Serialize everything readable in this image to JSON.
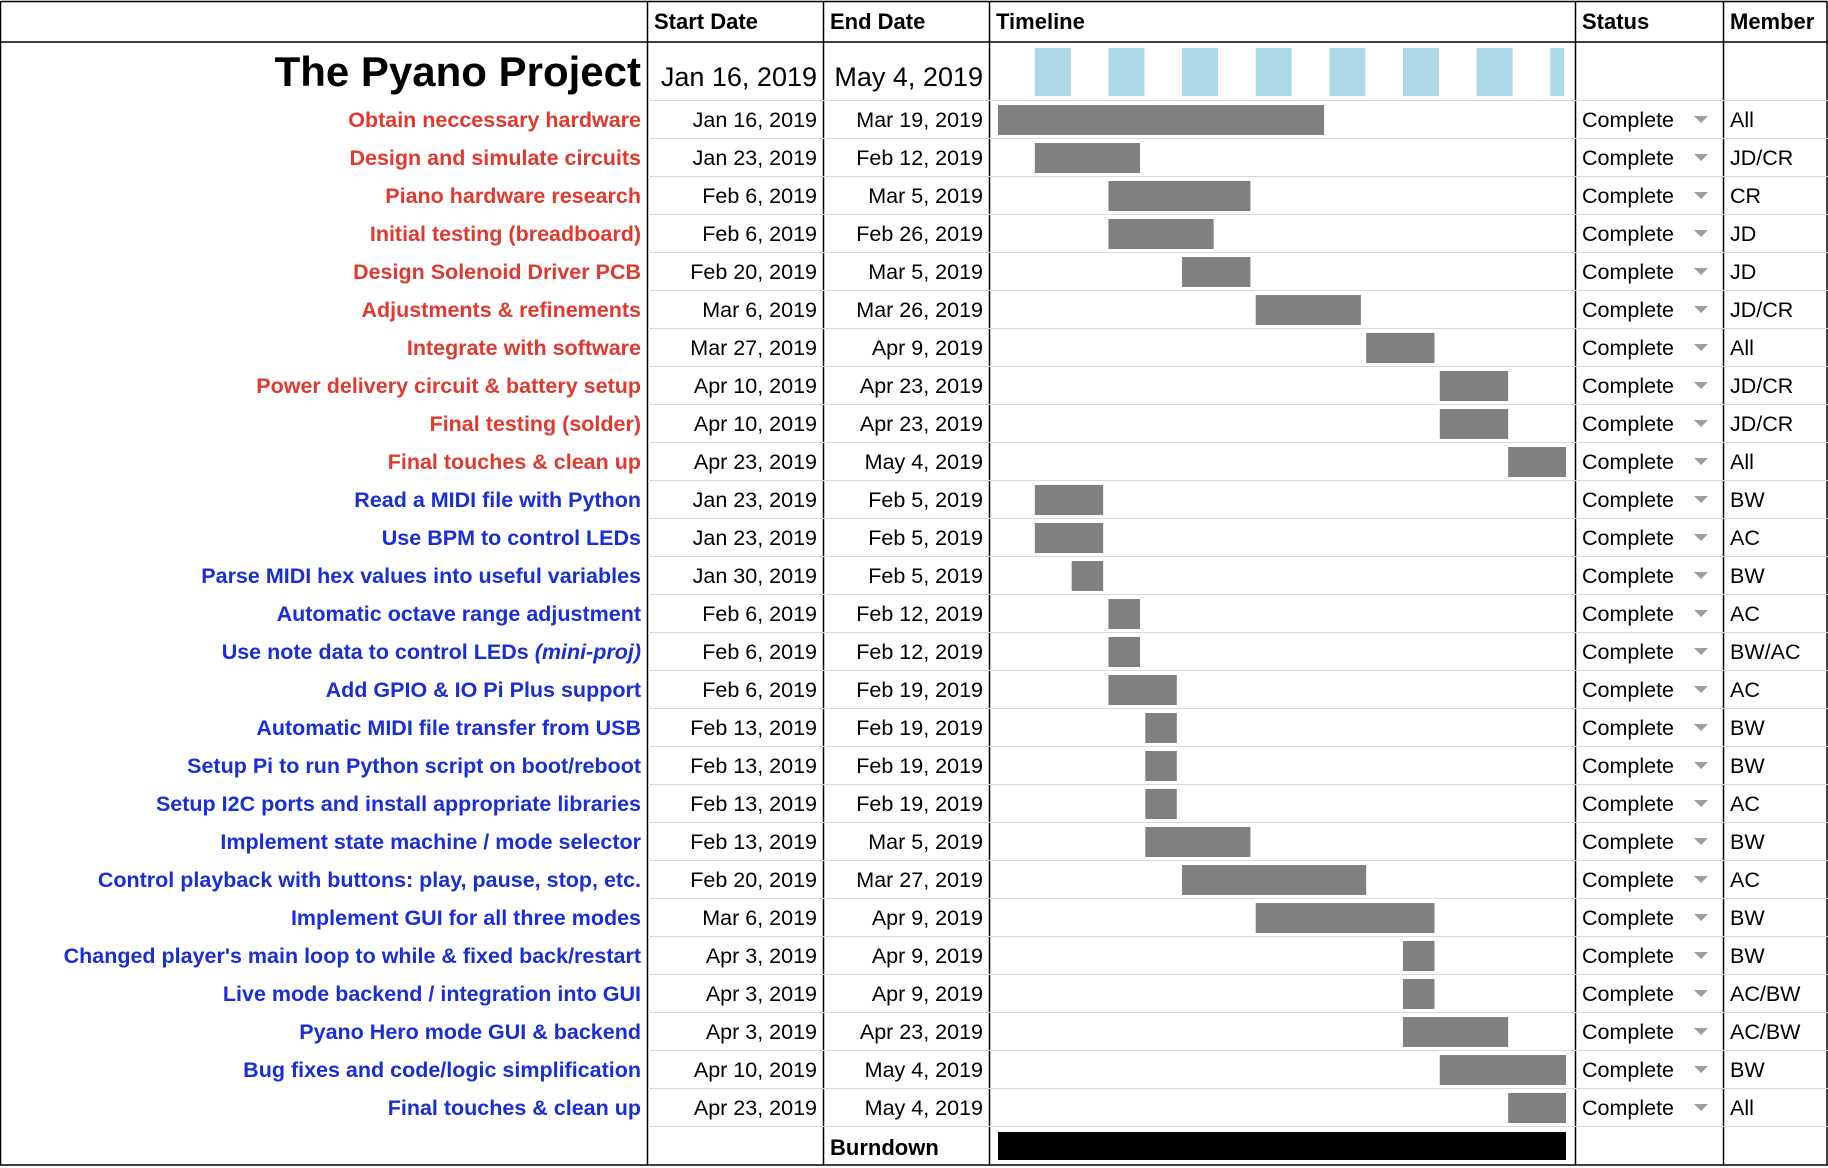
{
  "colors": {
    "hardware_task": "#e0392f",
    "software_task": "#1a2ed8",
    "bar": "#808080",
    "timeline_marker": "#add8e6",
    "burndown": "#000000",
    "grid": "#d9d9d9",
    "grid_dark": "#000000"
  },
  "header": {
    "task": "",
    "start": "Start Date",
    "end": "End Date",
    "timeline": "Timeline",
    "status": "Status",
    "member": "Member"
  },
  "project": {
    "title": "The Pyano Project",
    "start": "Jan 16, 2019",
    "end": "May 4, 2019"
  },
  "burndown_label": "Burndown",
  "chart_data": {
    "type": "gantt",
    "x_range": [
      "2019-01-16",
      "2019-05-04"
    ],
    "timeline_week_markers": [
      "2019-01-23",
      "2019-02-06",
      "2019-02-20",
      "2019-03-06",
      "2019-03-20",
      "2019-04-03",
      "2019-04-17",
      "2019-05-01"
    ],
    "burndown": {
      "start": "2019-01-16",
      "end": "2019-05-04"
    },
    "tasks": [
      {
        "name": "Obtain neccessary hardware",
        "group": "hardware",
        "start_label": "Jan 16, 2019",
        "end_label": "Mar 19, 2019",
        "start": "2019-01-16",
        "end": "2019-03-19",
        "status": "Complete",
        "member": "All"
      },
      {
        "name": "Design and simulate circuits",
        "group": "hardware",
        "start_label": "Jan 23, 2019",
        "end_label": "Feb 12, 2019",
        "start": "2019-01-23",
        "end": "2019-02-12",
        "status": "Complete",
        "member": "JD/CR"
      },
      {
        "name": "Piano hardware research",
        "group": "hardware",
        "start_label": "Feb 6, 2019",
        "end_label": "Mar 5, 2019",
        "start": "2019-02-06",
        "end": "2019-03-05",
        "status": "Complete",
        "member": "CR"
      },
      {
        "name": "Initial testing (breadboard)",
        "group": "hardware",
        "start_label": "Feb 6, 2019",
        "end_label": "Feb 26, 2019",
        "start": "2019-02-06",
        "end": "2019-02-26",
        "status": "Complete",
        "member": "JD"
      },
      {
        "name": "Design Solenoid Driver PCB",
        "group": "hardware",
        "start_label": "Feb 20, 2019",
        "end_label": "Mar 5, 2019",
        "start": "2019-02-20",
        "end": "2019-03-05",
        "status": "Complete",
        "member": "JD"
      },
      {
        "name": "Adjustments & refinements",
        "group": "hardware",
        "start_label": "Mar 6, 2019",
        "end_label": "Mar 26, 2019",
        "start": "2019-03-06",
        "end": "2019-03-26",
        "status": "Complete",
        "member": "JD/CR"
      },
      {
        "name": "Integrate with software",
        "group": "hardware",
        "start_label": "Mar 27, 2019",
        "end_label": "Apr 9, 2019",
        "start": "2019-03-27",
        "end": "2019-04-09",
        "status": "Complete",
        "member": "All"
      },
      {
        "name": "Power delivery circuit & battery setup",
        "group": "hardware",
        "start_label": "Apr 10, 2019",
        "end_label": "Apr 23, 2019",
        "start": "2019-04-10",
        "end": "2019-04-23",
        "status": "Complete",
        "member": "JD/CR"
      },
      {
        "name": "Final testing (solder)",
        "group": "hardware",
        "start_label": "Apr 10, 2019",
        "end_label": "Apr 23, 2019",
        "start": "2019-04-10",
        "end": "2019-04-23",
        "status": "Complete",
        "member": "JD/CR"
      },
      {
        "name": "Final touches & clean up",
        "group": "hardware",
        "start_label": "Apr 23, 2019",
        "end_label": "May 4, 2019",
        "start": "2019-04-23",
        "end": "2019-05-04",
        "status": "Complete",
        "member": "All"
      },
      {
        "name": "Read a MIDI file with Python",
        "group": "software",
        "start_label": "Jan 23, 2019",
        "end_label": "Feb 5, 2019",
        "start": "2019-01-23",
        "end": "2019-02-05",
        "status": "Complete",
        "member": "BW"
      },
      {
        "name": "Use BPM to control LEDs",
        "group": "software",
        "start_label": "Jan 23, 2019",
        "end_label": "Feb 5, 2019",
        "start": "2019-01-23",
        "end": "2019-02-05",
        "status": "Complete",
        "member": "AC"
      },
      {
        "name": "Parse MIDI hex values into useful variables",
        "group": "software",
        "start_label": "Jan 30, 2019",
        "end_label": "Feb 5, 2019",
        "start": "2019-01-30",
        "end": "2019-02-05",
        "status": "Complete",
        "member": "BW"
      },
      {
        "name": "Automatic octave range adjustment",
        "group": "software",
        "start_label": "Feb 6, 2019",
        "end_label": "Feb 12, 2019",
        "start": "2019-02-06",
        "end": "2019-02-12",
        "status": "Complete",
        "member": "AC"
      },
      {
        "name": "Use note data to control LEDs",
        "suffix": "(mini-proj)",
        "group": "software",
        "start_label": "Feb 6, 2019",
        "end_label": "Feb 12, 2019",
        "start": "2019-02-06",
        "end": "2019-02-12",
        "status": "Complete",
        "member": "BW/AC"
      },
      {
        "name": "Add GPIO & IO Pi Plus support",
        "group": "software",
        "start_label": "Feb 6, 2019",
        "end_label": "Feb 19, 2019",
        "start": "2019-02-06",
        "end": "2019-02-19",
        "status": "Complete",
        "member": "AC"
      },
      {
        "name": "Automatic MIDI file transfer from USB",
        "group": "software",
        "start_label": "Feb 13, 2019",
        "end_label": "Feb 19, 2019",
        "start": "2019-02-13",
        "end": "2019-02-19",
        "status": "Complete",
        "member": "BW"
      },
      {
        "name": "Setup Pi to run Python script on boot/reboot",
        "group": "software",
        "start_label": "Feb 13, 2019",
        "end_label": "Feb 19, 2019",
        "start": "2019-02-13",
        "end": "2019-02-19",
        "status": "Complete",
        "member": "BW"
      },
      {
        "name": "Setup I2C ports and install appropriate libraries",
        "group": "software",
        "start_label": "Feb 13, 2019",
        "end_label": "Feb 19, 2019",
        "start": "2019-02-13",
        "end": "2019-02-19",
        "status": "Complete",
        "member": "AC"
      },
      {
        "name": "Implement state machine / mode selector",
        "group": "software",
        "start_label": "Feb 13, 2019",
        "end_label": "Mar 5, 2019",
        "start": "2019-02-13",
        "end": "2019-03-05",
        "status": "Complete",
        "member": "BW"
      },
      {
        "name": "Control playback with buttons: play, pause, stop, etc.",
        "group": "software",
        "start_label": "Feb 20, 2019",
        "end_label": "Mar 27, 2019",
        "start": "2019-02-20",
        "end": "2019-03-27",
        "status": "Complete",
        "member": "AC"
      },
      {
        "name": "Implement GUI for all three modes",
        "group": "software",
        "start_label": "Mar 6, 2019",
        "end_label": "Apr 9, 2019",
        "start": "2019-03-06",
        "end": "2019-04-09",
        "status": "Complete",
        "member": "BW"
      },
      {
        "name": "Changed player's main loop to while & fixed back/restart",
        "group": "software",
        "start_label": "Apr 3, 2019",
        "end_label": "Apr 9, 2019",
        "start": "2019-04-03",
        "end": "2019-04-09",
        "status": "Complete",
        "member": "BW"
      },
      {
        "name": "Live mode backend / integration into GUI",
        "group": "software",
        "start_label": "Apr 3, 2019",
        "end_label": "Apr 9, 2019",
        "start": "2019-04-03",
        "end": "2019-04-09",
        "status": "Complete",
        "member": "AC/BW"
      },
      {
        "name": "Pyano Hero mode GUI & backend",
        "group": "software",
        "start_label": "Apr 3, 2019",
        "end_label": "Apr 23, 2019",
        "start": "2019-04-03",
        "end": "2019-04-23",
        "status": "Complete",
        "member": "AC/BW"
      },
      {
        "name": "Bug fixes and code/logic simplification",
        "group": "software",
        "start_label": "Apr 10, 2019",
        "end_label": "May 4, 2019",
        "start": "2019-04-10",
        "end": "2019-05-04",
        "status": "Complete",
        "member": "BW"
      },
      {
        "name": "Final touches & clean up",
        "group": "software",
        "start_label": "Apr 23, 2019",
        "end_label": "May 4, 2019",
        "start": "2019-04-23",
        "end": "2019-05-04",
        "status": "Complete",
        "member": "All"
      }
    ]
  }
}
